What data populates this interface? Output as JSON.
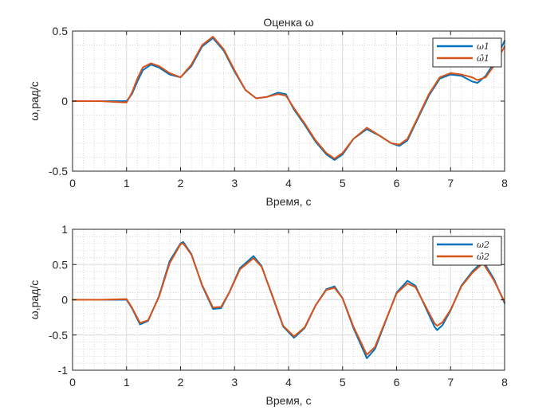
{
  "chart_data": [
    {
      "type": "line",
      "title": "Оценка ω",
      "xlabel": "Время, с",
      "ylabel": "ω,рад/с",
      "xlim": [
        0,
        8
      ],
      "ylim": [
        -0.5,
        0.5
      ],
      "xticks": [
        "0",
        "1",
        "2",
        "3",
        "4",
        "5",
        "6",
        "7",
        "8"
      ],
      "yticks": [
        "-0.5",
        "0",
        "0.5"
      ],
      "grid": "on, major and minor",
      "legend_position": "top-right",
      "series": [
        {
          "name": "ω1",
          "color": "#0072BD",
          "x": [
            0,
            0.5,
            1.0,
            1.1,
            1.2,
            1.3,
            1.45,
            1.6,
            1.8,
            2.0,
            2.2,
            2.4,
            2.6,
            2.8,
            3.0,
            3.2,
            3.4,
            3.6,
            3.8,
            3.95,
            4.1,
            4.3,
            4.5,
            4.7,
            4.85,
            5.0,
            5.2,
            5.45,
            5.7,
            5.9,
            6.05,
            6.2,
            6.4,
            6.6,
            6.8,
            7.0,
            7.2,
            7.4,
            7.5,
            7.65,
            7.8,
            8.0
          ],
          "y": [
            0,
            0,
            0,
            0.05,
            0.14,
            0.22,
            0.26,
            0.24,
            0.19,
            0.17,
            0.25,
            0.39,
            0.45,
            0.36,
            0.21,
            0.08,
            0.02,
            0.03,
            0.06,
            0.05,
            -0.06,
            -0.17,
            -0.29,
            -0.38,
            -0.42,
            -0.38,
            -0.27,
            -0.2,
            -0.25,
            -0.3,
            -0.32,
            -0.28,
            -0.12,
            0.04,
            0.16,
            0.19,
            0.18,
            0.14,
            0.13,
            0.18,
            0.27,
            0.43
          ]
        },
        {
          "name": "ω̂1",
          "color": "#D95319",
          "x": [
            0,
            0.5,
            1.0,
            1.1,
            1.2,
            1.3,
            1.45,
            1.6,
            1.8,
            2.0,
            2.2,
            2.4,
            2.6,
            2.8,
            3.0,
            3.2,
            3.4,
            3.6,
            3.8,
            3.95,
            4.1,
            4.3,
            4.5,
            4.7,
            4.85,
            5.0,
            5.2,
            5.45,
            5.7,
            5.9,
            6.05,
            6.2,
            6.4,
            6.6,
            6.8,
            7.0,
            7.2,
            7.4,
            7.5,
            7.65,
            7.8,
            8.0
          ],
          "y": [
            0,
            0,
            -0.01,
            0.06,
            0.16,
            0.24,
            0.27,
            0.25,
            0.2,
            0.17,
            0.26,
            0.4,
            0.46,
            0.37,
            0.22,
            0.08,
            0.02,
            0.03,
            0.05,
            0.04,
            -0.05,
            -0.16,
            -0.28,
            -0.37,
            -0.41,
            -0.37,
            -0.27,
            -0.19,
            -0.25,
            -0.3,
            -0.31,
            -0.27,
            -0.11,
            0.05,
            0.17,
            0.2,
            0.19,
            0.17,
            0.15,
            0.17,
            0.25,
            0.39
          ]
        }
      ]
    },
    {
      "type": "line",
      "title": "",
      "xlabel": "Время, с",
      "ylabel": "ω,рад/с",
      "xlim": [
        0,
        8
      ],
      "ylim": [
        -1,
        1
      ],
      "xticks": [
        "0",
        "1",
        "2",
        "3",
        "4",
        "5",
        "6",
        "7",
        "8"
      ],
      "yticks": [
        "-1",
        "-0.5",
        "0",
        "0.5",
        "1"
      ],
      "grid": "on, major and minor",
      "legend_position": "top-right",
      "series": [
        {
          "name": "ω2",
          "color": "#0072BD",
          "x": [
            0,
            0.5,
            1.0,
            1.1,
            1.25,
            1.4,
            1.6,
            1.8,
            2.0,
            2.05,
            2.2,
            2.4,
            2.6,
            2.75,
            2.9,
            3.1,
            3.35,
            3.5,
            3.7,
            3.9,
            4.1,
            4.3,
            4.5,
            4.7,
            4.85,
            5.0,
            5.2,
            5.45,
            5.6,
            5.8,
            6.0,
            6.2,
            6.35,
            6.5,
            6.7,
            6.75,
            6.85,
            7.0,
            7.2,
            7.4,
            7.6,
            7.8,
            8.0
          ],
          "y": [
            0,
            0,
            0,
            -0.12,
            -0.35,
            -0.3,
            0.05,
            0.55,
            0.8,
            0.82,
            0.65,
            0.2,
            -0.13,
            -0.12,
            0.1,
            0.45,
            0.62,
            0.48,
            0.05,
            -0.38,
            -0.54,
            -0.4,
            -0.08,
            0.15,
            0.19,
            0.02,
            -0.4,
            -0.83,
            -0.7,
            -0.3,
            0.1,
            0.27,
            0.2,
            -0.05,
            -0.38,
            -0.43,
            -0.36,
            -0.15,
            0.2,
            0.4,
            0.55,
            0.3,
            -0.05
          ]
        },
        {
          "name": "ω̂2",
          "color": "#D95319",
          "x": [
            0,
            0.5,
            1.0,
            1.1,
            1.25,
            1.4,
            1.6,
            1.8,
            2.0,
            2.05,
            2.2,
            2.4,
            2.6,
            2.75,
            2.9,
            3.1,
            3.35,
            3.5,
            3.7,
            3.9,
            4.1,
            4.3,
            4.5,
            4.7,
            4.85,
            5.0,
            5.2,
            5.45,
            5.6,
            5.8,
            6.0,
            6.2,
            6.35,
            6.5,
            6.7,
            6.75,
            6.85,
            7.0,
            7.2,
            7.4,
            7.6,
            7.8,
            8.0
          ],
          "y": [
            0,
            0,
            0.01,
            -0.11,
            -0.33,
            -0.29,
            0.04,
            0.52,
            0.79,
            0.8,
            0.64,
            0.21,
            -0.11,
            -0.1,
            0.1,
            0.43,
            0.59,
            0.47,
            0.06,
            -0.37,
            -0.52,
            -0.39,
            -0.08,
            0.14,
            0.17,
            0.02,
            -0.38,
            -0.78,
            -0.67,
            -0.29,
            0.09,
            0.23,
            0.18,
            -0.04,
            -0.33,
            -0.37,
            -0.32,
            -0.14,
            0.19,
            0.38,
            0.52,
            0.28,
            -0.03
          ]
        }
      ]
    }
  ]
}
